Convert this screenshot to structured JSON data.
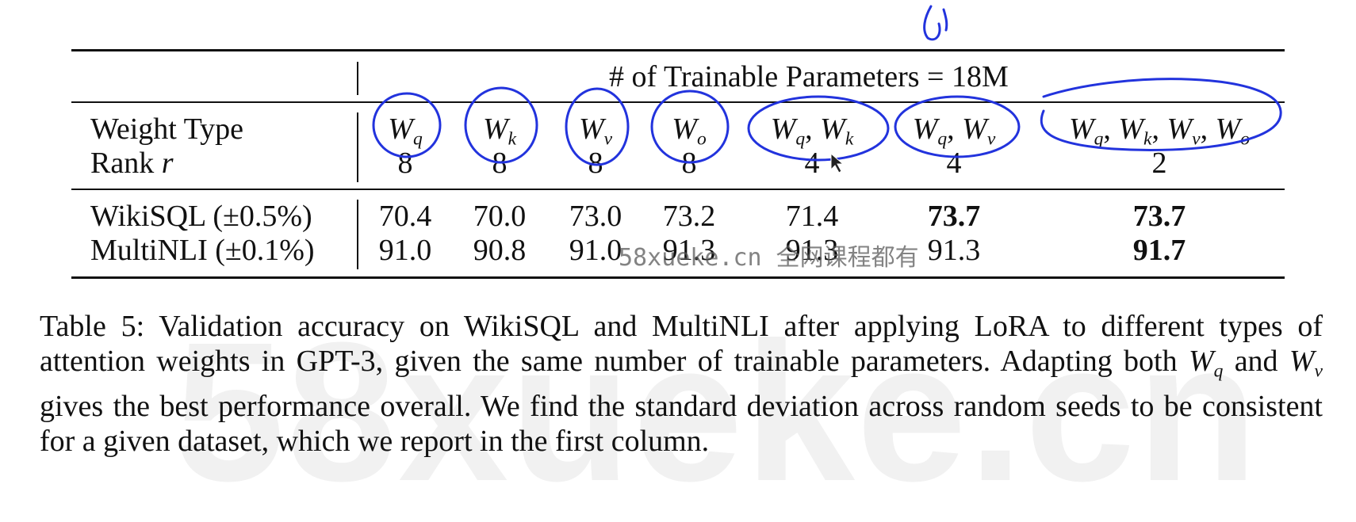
{
  "header": {
    "params_label": "# of Trainable Parameters = 18M",
    "row_weight_label": "Weight Type",
    "row_rank_label": "Rank"
  },
  "columns": [
    {
      "weight_base": "W",
      "weight_sub": "q",
      "rank": "8"
    },
    {
      "weight_base": "W",
      "weight_sub": "k",
      "rank": "8"
    },
    {
      "weight_base": "W",
      "weight_sub": "v",
      "rank": "8"
    },
    {
      "weight_base": "W",
      "weight_sub": "o",
      "rank": "8"
    },
    {
      "weight_text": "Wq, Wk",
      "rank": "4"
    },
    {
      "weight_text": "Wq, Wv",
      "rank": "4"
    },
    {
      "weight_text": "Wq, Wk, Wv, Wo",
      "rank": "2"
    }
  ],
  "rows": [
    {
      "label": "WikiSQL (±0.5%)",
      "values": [
        "70.4",
        "70.0",
        "73.0",
        "73.2",
        "71.4",
        "73.7",
        "73.7"
      ],
      "bold": [
        false,
        false,
        false,
        false,
        false,
        true,
        true
      ]
    },
    {
      "label": "MultiNLI (±0.1%)",
      "values": [
        "91.0",
        "90.8",
        "91.0",
        "91.3",
        "91.3",
        "91.3",
        "91.7"
      ],
      "bold": [
        false,
        false,
        false,
        false,
        false,
        false,
        true
      ]
    }
  ],
  "caption": {
    "text": "Table 5: Validation accuracy on WikiSQL and MultiNLI after applying LoRA to different types of attention weights in GPT-3, given the same number of trainable parameters. Adapting both Wq and Wv gives the best performance overall. We find the standard deviation across random seeds to be consistent for a given dataset, which we report in the first column."
  },
  "watermark": {
    "overlay": "58xueke.cn 全网课程都有",
    "background": "58xueke.cn"
  },
  "colors": {
    "ink": "#2233dd",
    "text": "#111111",
    "watermark": "#f1f1f1"
  }
}
